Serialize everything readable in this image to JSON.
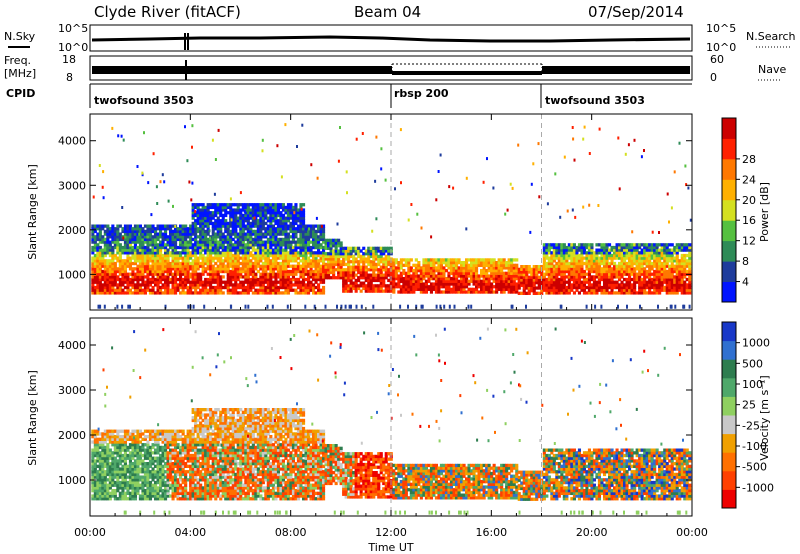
{
  "header": {
    "radar": "Clyde River (fitACF)",
    "beam": "Beam 04",
    "date": "07/Sep/2014"
  },
  "panels": {
    "nsky": {
      "label": "N.Sky",
      "tick_top": "10^5",
      "tick_bottom": "10^0"
    },
    "nsearch": {
      "label": "N.Search",
      "tick_top": "10^5",
      "tick_bottom": "10^0"
    },
    "freq": {
      "label_line1": "Freq.",
      "label_line2": "[MHz]",
      "tick_top": "18",
      "tick_bottom": "8"
    },
    "nave": {
      "label": "Nave",
      "tick_top": "60",
      "tick_bottom": "0"
    },
    "cpid": {
      "label": "CPID",
      "modes": [
        {
          "name": "twofsound 3503",
          "start_hour": 0
        },
        {
          "name": "rbsp 200",
          "start_hour": 12
        },
        {
          "name": "twofsound 3503",
          "start_hour": 18
        }
      ]
    }
  },
  "chart_data": [
    {
      "type": "heatmap",
      "title": "",
      "ylabel": "Slant Range [km]",
      "xlabel": "Time UT",
      "xlim_hours": [
        0,
        24
      ],
      "ylim": [
        200,
        4600
      ],
      "yticks": [
        1000,
        2000,
        3000,
        4000
      ],
      "xtick_labels": [
        "00:00",
        "04:00",
        "08:00",
        "12:00",
        "16:00",
        "20:00",
        "00:00"
      ],
      "colorbar": {
        "label": "Power [dB]",
        "ticks": [
          "4",
          "8",
          "12",
          "16",
          "20",
          "24",
          "28"
        ],
        "colors": [
          "#0014ff",
          "#1e3c9c",
          "#2e8b57",
          "#55c040",
          "#d4e020",
          "#ffb000",
          "#ff7800",
          "#ff2000",
          "#cc0000"
        ]
      }
    },
    {
      "type": "heatmap",
      "title": "",
      "ylabel": "Slant Range [km]",
      "xlabel": "Time UT",
      "xlim_hours": [
        0,
        24
      ],
      "ylim": [
        200,
        4600
      ],
      "yticks": [
        1000,
        2000,
        3000,
        4000
      ],
      "xtick_labels": [
        "00:00",
        "04:00",
        "08:00",
        "12:00",
        "16:00",
        "20:00",
        "00:00"
      ],
      "colorbar": {
        "label": "Velocity [m s⁻¹]",
        "ticks": [
          "1000",
          "500",
          "100",
          "25",
          "-25",
          "-100",
          "-500",
          "-1000"
        ],
        "colors": [
          "#1838c8",
          "#3070d0",
          "#2e7d4f",
          "#4fa86a",
          "#8fd060",
          "#c8c8c8",
          "#f0a000",
          "#ff7000",
          "#ff4000",
          "#ee0000"
        ]
      }
    }
  ],
  "axis": {
    "xlabel": "Time UT"
  }
}
